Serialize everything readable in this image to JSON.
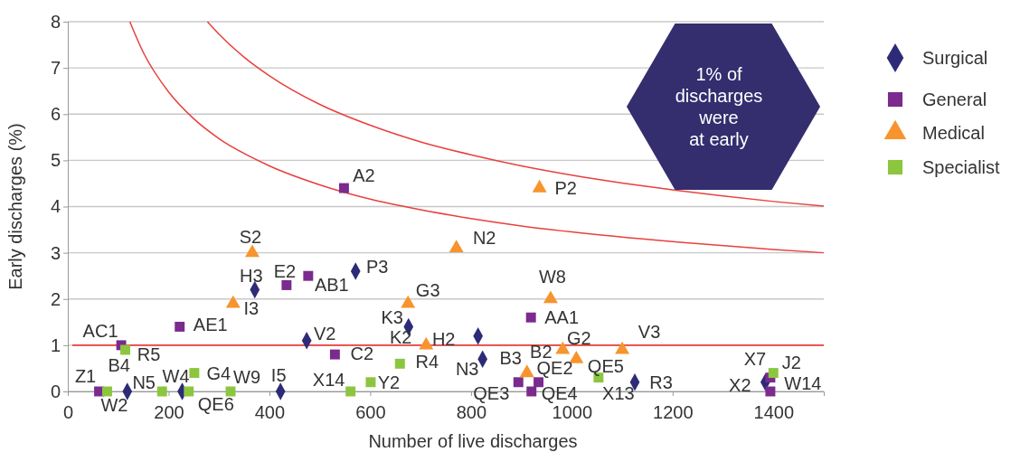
{
  "chart_data": {
    "type": "scatter",
    "xlabel": "Number of live discharges",
    "ylabel": "Early discharges (%)",
    "xlim": [
      0,
      1500
    ],
    "xticks": [
      0,
      200,
      400,
      600,
      800,
      1000,
      1200,
      1400
    ],
    "ylim": [
      0,
      8
    ],
    "yticks": [
      0,
      1,
      2,
      3,
      4,
      5,
      6,
      7,
      8
    ],
    "grid": "y",
    "legend": "right",
    "ref_lines": [
      {
        "axis": "y",
        "value": 1,
        "color": "#e8413c"
      }
    ],
    "series": [
      {
        "name": "Surgical",
        "color": "#2d2b78",
        "marker": "diamond",
        "x": [
          118,
          227,
          422,
          371,
          571,
          474,
          676,
          814,
          823,
          1125,
          1384
        ],
        "values": [
          0,
          0,
          0,
          2.2,
          2.6,
          1.1,
          1.4,
          1.2,
          0.7,
          0.2,
          0.2
        ]
      },
      {
        "name": "General",
        "color": "#7b2a8e",
        "marker": "square",
        "x": [
          62,
          106,
          222,
          434,
          477,
          548,
          530,
          919,
          894,
          934,
          920,
          1394,
          1394
        ],
        "values": [
          0,
          1.0,
          1.4,
          2.3,
          2.5,
          4.4,
          0.8,
          1.6,
          0.2,
          0.2,
          0,
          0.3,
          0
        ]
      },
      {
        "name": "Medical",
        "color": "#f7942d",
        "marker": "triangle",
        "x": [
          328,
          366,
          675,
          711,
          771,
          936,
          958,
          911,
          982,
          1009,
          1100
        ],
        "values": [
          1.9,
          3.0,
          1.9,
          1.0,
          3.1,
          4.4,
          2.0,
          0.4,
          0.9,
          0.7,
          0.9
        ]
      },
      {
        "name": "Specialist",
        "color": "#8cc63f",
        "marker": "square",
        "x": [
          78,
          114,
          187,
          240,
          251,
          323,
          561,
          601,
          659,
          1053,
          1400
        ],
        "values": [
          0,
          0.9,
          0,
          0,
          0.4,
          0,
          0,
          0.2,
          0.6,
          0.3,
          0.4
        ]
      },
      {
        "type": "line",
        "color": "#e8413c",
        "marker": "none",
        "x": [
          277,
          300,
          350,
          400,
          500,
          600,
          700,
          800,
          900,
          1000,
          1100,
          1200,
          1300,
          1400,
          1500
        ],
        "values": [
          8.0,
          7.73,
          7.23,
          6.83,
          6.21,
          5.76,
          5.4,
          5.12,
          4.88,
          4.68,
          4.51,
          4.36,
          4.23,
          4.11,
          4.01
        ]
      },
      {
        "type": "line",
        "color": "#e8413c",
        "marker": "none",
        "x": [
          123,
          150,
          200,
          250,
          300,
          400,
          500,
          600,
          700,
          800,
          900,
          1000,
          1200,
          1400,
          1500
        ],
        "values": [
          8.0,
          7.33,
          6.48,
          5.9,
          5.47,
          4.88,
          4.47,
          4.16,
          3.93,
          3.74,
          3.58,
          3.45,
          3.24,
          3.07,
          3.0
        ]
      }
    ],
    "annotations": [
      {
        "text": "Z1",
        "x": 62,
        "y": 0
      },
      {
        "text": "W2",
        "x": 78,
        "y": 0
      },
      {
        "text": "B4",
        "x": 118,
        "y": 0
      },
      {
        "text": "AC1",
        "x": 106,
        "y": 1.0
      },
      {
        "text": "R5",
        "x": 114,
        "y": 0.9
      },
      {
        "text": "N5",
        "x": 187,
        "y": 0
      },
      {
        "text": "W4",
        "x": 227,
        "y": 0
      },
      {
        "text": "QE6",
        "x": 240,
        "y": 0
      },
      {
        "text": "G4",
        "x": 251,
        "y": 0.4
      },
      {
        "text": "W9",
        "x": 323,
        "y": 0
      },
      {
        "text": "I5",
        "x": 422,
        "y": 0
      },
      {
        "text": "AE1",
        "x": 222,
        "y": 1.4
      },
      {
        "text": "I3",
        "x": 328,
        "y": 1.9
      },
      {
        "text": "S2",
        "x": 366,
        "y": 3.0
      },
      {
        "text": "H3",
        "x": 371,
        "y": 2.2
      },
      {
        "text": "E2",
        "x": 434,
        "y": 2.3
      },
      {
        "text": "AB1",
        "x": 477,
        "y": 2.5
      },
      {
        "text": "P3",
        "x": 571,
        "y": 2.6
      },
      {
        "text": "A2",
        "x": 548,
        "y": 4.4
      },
      {
        "text": "V2",
        "x": 474,
        "y": 1.1
      },
      {
        "text": "C2",
        "x": 530,
        "y": 0.8
      },
      {
        "text": "X14",
        "x": 561,
        "y": 0
      },
      {
        "text": "Y2",
        "x": 601,
        "y": 0.2
      },
      {
        "text": "R4",
        "x": 659,
        "y": 0.6
      },
      {
        "text": "K3",
        "x": 676,
        "y": 1.4
      },
      {
        "text": "G3",
        "x": 675,
        "y": 1.9
      },
      {
        "text": "K2",
        "x": 711,
        "y": 1.0
      },
      {
        "text": "H2",
        "x": 814,
        "y": 1.2
      },
      {
        "text": "N3",
        "x": 823,
        "y": 0.7
      },
      {
        "text": "N2",
        "x": 771,
        "y": 3.1
      },
      {
        "text": "P2",
        "x": 936,
        "y": 4.4
      },
      {
        "text": "W8",
        "x": 958,
        "y": 2.0
      },
      {
        "text": "AA1",
        "x": 919,
        "y": 1.6
      },
      {
        "text": "QE3",
        "x": 894,
        "y": 0.2
      },
      {
        "text": "B3",
        "x": 911,
        "y": 0.4
      },
      {
        "text": "B2",
        "x": 982,
        "y": 0.9
      },
      {
        "text": "G2",
        "x": 1009,
        "y": 0.7
      },
      {
        "text": "QE2",
        "x": 934,
        "y": 0.2
      },
      {
        "text": "QE4",
        "x": 920,
        "y": 0
      },
      {
        "text": "QE5",
        "x": 1053,
        "y": 0.3
      },
      {
        "text": "X13",
        "x": 1053,
        "y": 0.3
      },
      {
        "text": "V3",
        "x": 1100,
        "y": 0.9
      },
      {
        "text": "R3",
        "x": 1125,
        "y": 0.2
      },
      {
        "text": "X7",
        "x": 1394,
        "y": 0.3
      },
      {
        "text": "X2",
        "x": 1384,
        "y": 0.2
      },
      {
        "text": "J2",
        "x": 1400,
        "y": 0.4
      },
      {
        "text": "W14",
        "x": 1394,
        "y": 0
      },
      "1% of\ndischarges\nwere\nat early"
    ]
  }
}
